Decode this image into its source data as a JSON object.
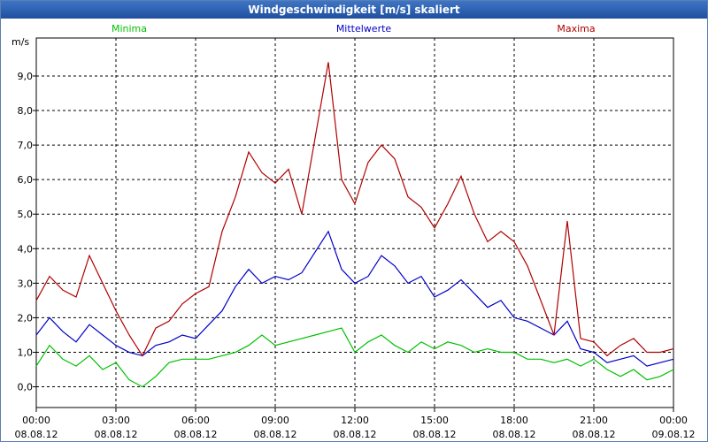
{
  "window": {
    "title": "Windgeschwindigkeit [m/s] skaliert"
  },
  "chart_data": {
    "type": "line",
    "title": "Windgeschwindigkeit [m/s] skaliert",
    "ylabel": "m/s",
    "xlabel": "",
    "ylim": [
      -0.6,
      10.1
    ],
    "xlim": [
      0,
      24
    ],
    "grid": true,
    "legend_placement": "top",
    "y_ticks": [
      "0,0",
      "1,0",
      "2,0",
      "3,0",
      "4,0",
      "5,0",
      "6,0",
      "7,0",
      "8,0",
      "9,0"
    ],
    "x_ticks": [
      {
        "time": "00:00",
        "date": "08.08.12"
      },
      {
        "time": "03:00",
        "date": "08.08.12"
      },
      {
        "time": "06:00",
        "date": "08.08.12"
      },
      {
        "time": "09:00",
        "date": "08.08.12"
      },
      {
        "time": "12:00",
        "date": "08.08.12"
      },
      {
        "time": "15:00",
        "date": "08.08.12"
      },
      {
        "time": "18:00",
        "date": "08.08.12"
      },
      {
        "time": "21:00",
        "date": "08.08.12"
      },
      {
        "time": "00:00",
        "date": "09.08.12"
      }
    ],
    "x_hours": [
      0,
      0.5,
      1,
      1.5,
      2,
      2.5,
      3,
      3.5,
      4,
      4.5,
      5,
      5.5,
      6,
      6.5,
      7,
      7.5,
      8,
      8.5,
      9,
      9.5,
      10,
      10.5,
      11,
      11.5,
      12,
      12.5,
      13,
      13.5,
      14,
      14.5,
      15,
      15.5,
      16,
      16.5,
      17,
      17.5,
      18,
      18.5,
      19,
      19.5,
      20,
      20.5,
      21,
      21.5,
      22,
      22.5,
      23,
      23.5,
      24
    ],
    "series": [
      {
        "name": "Minima",
        "color": "#00c000",
        "values": [
          0.6,
          1.2,
          0.8,
          0.6,
          0.9,
          0.5,
          0.7,
          0.2,
          0.0,
          0.3,
          0.7,
          0.8,
          0.8,
          0.8,
          0.9,
          1.0,
          1.2,
          1.5,
          1.2,
          1.3,
          1.4,
          1.5,
          1.6,
          1.7,
          1.0,
          1.3,
          1.5,
          1.2,
          1.0,
          1.3,
          1.1,
          1.3,
          1.2,
          1.0,
          1.1,
          1.0,
          1.0,
          0.8,
          0.8,
          0.7,
          0.8,
          0.6,
          0.8,
          0.5,
          0.3,
          0.5,
          0.2,
          0.3,
          0.5
        ]
      },
      {
        "name": "Mittelwerte",
        "color": "#0000c8",
        "values": [
          1.5,
          2.0,
          1.6,
          1.3,
          1.8,
          1.5,
          1.2,
          1.0,
          0.9,
          1.2,
          1.3,
          1.5,
          1.4,
          1.8,
          2.2,
          2.9,
          3.4,
          3.0,
          3.2,
          3.1,
          3.3,
          3.9,
          4.5,
          3.4,
          3.0,
          3.2,
          3.8,
          3.5,
          3.0,
          3.2,
          2.6,
          2.8,
          3.1,
          2.7,
          2.3,
          2.5,
          2.0,
          1.9,
          1.7,
          1.5,
          1.9,
          1.1,
          1.0,
          0.7,
          0.8,
          0.9,
          0.6,
          0.7,
          0.8
        ]
      },
      {
        "name": "Maxima",
        "color": "#b00000",
        "values": [
          2.5,
          3.2,
          2.8,
          2.6,
          3.8,
          3.0,
          2.2,
          1.5,
          0.9,
          1.7,
          1.9,
          2.4,
          2.7,
          2.9,
          4.5,
          5.5,
          6.8,
          6.2,
          5.9,
          6.3,
          5.0,
          7.2,
          9.4,
          6.0,
          5.3,
          6.5,
          7.0,
          6.6,
          5.5,
          5.2,
          4.6,
          5.3,
          6.1,
          5.0,
          4.2,
          4.5,
          4.2,
          3.5,
          2.5,
          1.5,
          4.8,
          1.4,
          1.3,
          0.9,
          1.2,
          1.4,
          1.0,
          1.0,
          1.1
        ]
      }
    ]
  }
}
